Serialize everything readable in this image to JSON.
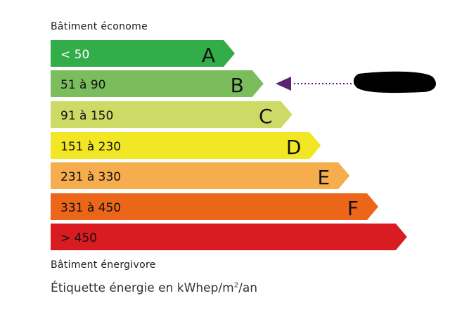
{
  "top_label": "Bâtiment économe",
  "bottom_label": "Bâtiment énergivore",
  "unit_label": {
    "prefix": "Étiquette énergie en kWhep/m",
    "sup": "2",
    "suffix": "/an"
  },
  "classes": [
    {
      "range": "< 50",
      "letter": "A",
      "color": "#33ac4a",
      "text_color": "#ffffff"
    },
    {
      "range": "51 à 90",
      "letter": "B",
      "color": "#7bbd5d",
      "text_color": "#111111"
    },
    {
      "range": "91 à 150",
      "letter": "C",
      "color": "#cdda66",
      "text_color": "#111111"
    },
    {
      "range": "151 à 230",
      "letter": "D",
      "color": "#f2e725",
      "text_color": "#111111"
    },
    {
      "range": "231 à 330",
      "letter": "E",
      "color": "#f5ad4d",
      "text_color": "#111111"
    },
    {
      "range": "331 à 450",
      "letter": "F",
      "color": "#ec6619",
      "text_color": "#111111"
    },
    {
      "range": "> 450",
      "letter": "",
      "color": "#d81c22",
      "text_color": "#111111"
    }
  ],
  "indicator": {
    "class": "B",
    "color": "#5a2270",
    "value_redacted": true
  }
}
